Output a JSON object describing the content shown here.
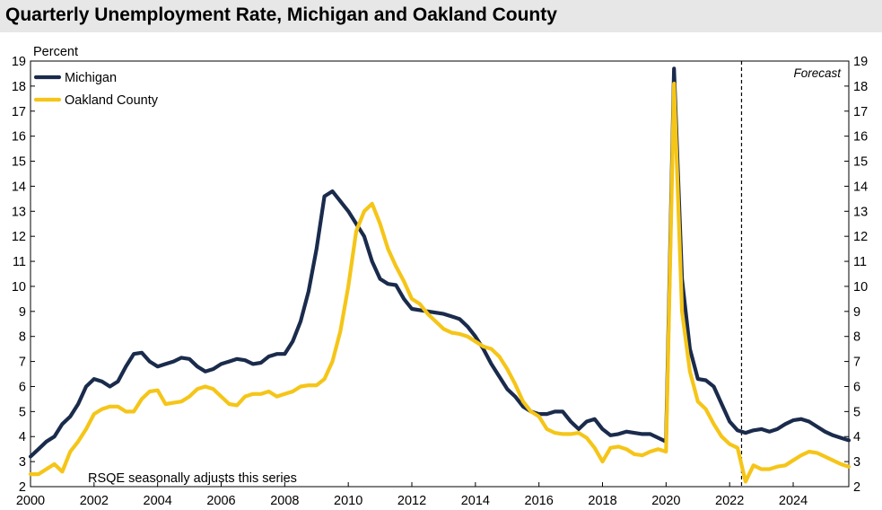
{
  "title": "Quarterly Unemployment Rate, Michigan and Oakland County",
  "chart_data": {
    "type": "line",
    "title": "Quarterly Unemployment Rate, Michigan and Oakland County",
    "ylabel": "Percent",
    "xlabel": "",
    "ylim": [
      2,
      19
    ],
    "yticks": [
      "2",
      "3",
      "4",
      "5",
      "6",
      "7",
      "8",
      "9",
      "10",
      "11",
      "12",
      "13",
      "14",
      "15",
      "16",
      "17",
      "18",
      "19"
    ],
    "xlim": [
      2000,
      2025.75
    ],
    "xticks": [
      "2000",
      "2002",
      "2004",
      "2006",
      "2008",
      "2010",
      "2012",
      "2014",
      "2016",
      "2018",
      "2020",
      "2022",
      "2024"
    ],
    "grid": false,
    "legend_position": "top-left",
    "forecast_start": 2022.375,
    "forecast_label": "Forecast",
    "note": "RSQE seasonally adjusts this series",
    "colors": {
      "Michigan": "#1a2b4c",
      "Oakland County": "#f5c518"
    },
    "series": [
      {
        "name": "Michigan",
        "points": [
          [
            2000,
            3.2
          ],
          [
            2000.25,
            3.5
          ],
          [
            2000.5,
            3.8
          ],
          [
            2000.75,
            4.0
          ],
          [
            2001,
            4.5
          ],
          [
            2001.25,
            4.8
          ],
          [
            2001.5,
            5.3
          ],
          [
            2001.75,
            6.0
          ],
          [
            2002,
            6.3
          ],
          [
            2002.25,
            6.2
          ],
          [
            2002.5,
            6.0
          ],
          [
            2002.75,
            6.2
          ],
          [
            2003,
            6.8
          ],
          [
            2003.25,
            7.3
          ],
          [
            2003.5,
            7.35
          ],
          [
            2003.75,
            7.0
          ],
          [
            2004,
            6.8
          ],
          [
            2004.25,
            6.9
          ],
          [
            2004.5,
            7.0
          ],
          [
            2004.75,
            7.15
          ],
          [
            2005,
            7.1
          ],
          [
            2005.25,
            6.8
          ],
          [
            2005.5,
            6.6
          ],
          [
            2005.75,
            6.7
          ],
          [
            2006,
            6.9
          ],
          [
            2006.25,
            7.0
          ],
          [
            2006.5,
            7.1
          ],
          [
            2006.75,
            7.05
          ],
          [
            2007,
            6.9
          ],
          [
            2007.25,
            6.95
          ],
          [
            2007.5,
            7.2
          ],
          [
            2007.75,
            7.3
          ],
          [
            2008,
            7.3
          ],
          [
            2008.25,
            7.8
          ],
          [
            2008.5,
            8.6
          ],
          [
            2008.75,
            9.8
          ],
          [
            2009,
            11.5
          ],
          [
            2009.25,
            13.6
          ],
          [
            2009.5,
            13.8
          ],
          [
            2009.75,
            13.4
          ],
          [
            2010,
            13.0
          ],
          [
            2010.25,
            12.5
          ],
          [
            2010.5,
            12.0
          ],
          [
            2010.75,
            11.0
          ],
          [
            2011,
            10.3
          ],
          [
            2011.25,
            10.1
          ],
          [
            2011.5,
            10.05
          ],
          [
            2011.75,
            9.5
          ],
          [
            2012,
            9.1
          ],
          [
            2012.25,
            9.05
          ],
          [
            2012.5,
            9.0
          ],
          [
            2012.75,
            8.95
          ],
          [
            2013,
            8.9
          ],
          [
            2013.25,
            8.8
          ],
          [
            2013.5,
            8.7
          ],
          [
            2013.75,
            8.4
          ],
          [
            2014,
            8.0
          ],
          [
            2014.25,
            7.5
          ],
          [
            2014.5,
            6.9
          ],
          [
            2014.75,
            6.4
          ],
          [
            2015,
            5.9
          ],
          [
            2015.25,
            5.6
          ],
          [
            2015.5,
            5.2
          ],
          [
            2015.75,
            5.0
          ],
          [
            2016,
            4.9
          ],
          [
            2016.25,
            4.9
          ],
          [
            2016.5,
            5.0
          ],
          [
            2016.75,
            5.0
          ],
          [
            2017,
            4.6
          ],
          [
            2017.25,
            4.3
          ],
          [
            2017.5,
            4.6
          ],
          [
            2017.75,
            4.7
          ],
          [
            2018,
            4.3
          ],
          [
            2018.25,
            4.05
          ],
          [
            2018.5,
            4.1
          ],
          [
            2018.75,
            4.2
          ],
          [
            2019,
            4.15
          ],
          [
            2019.25,
            4.1
          ],
          [
            2019.5,
            4.1
          ],
          [
            2019.75,
            3.95
          ],
          [
            2020,
            3.8
          ],
          [
            2020.25,
            18.7
          ],
          [
            2020.5,
            10.3
          ],
          [
            2020.75,
            7.5
          ],
          [
            2021,
            6.3
          ],
          [
            2021.25,
            6.25
          ],
          [
            2021.5,
            6.0
          ],
          [
            2021.75,
            5.3
          ],
          [
            2022,
            4.6
          ],
          [
            2022.25,
            4.25
          ],
          [
            2022.5,
            4.15
          ],
          [
            2022.75,
            4.25
          ],
          [
            2023,
            4.3
          ],
          [
            2023.25,
            4.2
          ],
          [
            2023.5,
            4.3
          ],
          [
            2023.75,
            4.5
          ],
          [
            2024,
            4.65
          ],
          [
            2024.25,
            4.7
          ],
          [
            2024.5,
            4.6
          ],
          [
            2024.75,
            4.4
          ],
          [
            2025,
            4.2
          ],
          [
            2025.25,
            4.05
          ],
          [
            2025.5,
            3.95
          ],
          [
            2025.75,
            3.85
          ]
        ]
      },
      {
        "name": "Oakland County",
        "points": [
          [
            2000,
            2.5
          ],
          [
            2000.25,
            2.5
          ],
          [
            2000.5,
            2.7
          ],
          [
            2000.75,
            2.9
          ],
          [
            2001,
            2.6
          ],
          [
            2001.25,
            3.4
          ],
          [
            2001.5,
            3.8
          ],
          [
            2001.75,
            4.3
          ],
          [
            2002,
            4.9
          ],
          [
            2002.25,
            5.1
          ],
          [
            2002.5,
            5.2
          ],
          [
            2002.75,
            5.2
          ],
          [
            2003,
            5.0
          ],
          [
            2003.25,
            5.0
          ],
          [
            2003.5,
            5.5
          ],
          [
            2003.75,
            5.8
          ],
          [
            2004,
            5.85
          ],
          [
            2004.25,
            5.3
          ],
          [
            2004.5,
            5.35
          ],
          [
            2004.75,
            5.4
          ],
          [
            2005,
            5.6
          ],
          [
            2005.25,
            5.9
          ],
          [
            2005.5,
            6.0
          ],
          [
            2005.75,
            5.9
          ],
          [
            2006,
            5.6
          ],
          [
            2006.25,
            5.3
          ],
          [
            2006.5,
            5.25
          ],
          [
            2006.75,
            5.6
          ],
          [
            2007,
            5.7
          ],
          [
            2007.25,
            5.7
          ],
          [
            2007.5,
            5.8
          ],
          [
            2007.75,
            5.6
          ],
          [
            2008,
            5.7
          ],
          [
            2008.25,
            5.8
          ],
          [
            2008.5,
            6.0
          ],
          [
            2008.75,
            6.05
          ],
          [
            2009,
            6.05
          ],
          [
            2009.25,
            6.3
          ],
          [
            2009.5,
            7.0
          ],
          [
            2009.75,
            8.2
          ],
          [
            2010,
            10.0
          ],
          [
            2010.25,
            12.2
          ],
          [
            2010.5,
            13.0
          ],
          [
            2010.75,
            13.3
          ],
          [
            2011,
            12.5
          ],
          [
            2011.25,
            11.5
          ],
          [
            2011.5,
            10.8
          ],
          [
            2011.75,
            10.2
          ],
          [
            2012,
            9.5
          ],
          [
            2012.25,
            9.3
          ],
          [
            2012.5,
            8.9
          ],
          [
            2012.75,
            8.6
          ],
          [
            2013,
            8.3
          ],
          [
            2013.25,
            8.15
          ],
          [
            2013.5,
            8.1
          ],
          [
            2013.75,
            8.0
          ],
          [
            2014,
            7.8
          ],
          [
            2014.25,
            7.6
          ],
          [
            2014.5,
            7.5
          ],
          [
            2014.75,
            7.2
          ],
          [
            2015,
            6.7
          ],
          [
            2015.25,
            6.1
          ],
          [
            2015.5,
            5.4
          ],
          [
            2015.75,
            5.0
          ],
          [
            2016,
            4.8
          ],
          [
            2016.25,
            4.3
          ],
          [
            2016.5,
            4.15
          ],
          [
            2016.75,
            4.1
          ],
          [
            2017,
            4.1
          ],
          [
            2017.25,
            4.15
          ],
          [
            2017.5,
            3.95
          ],
          [
            2017.75,
            3.55
          ],
          [
            2018,
            3.0
          ],
          [
            2018.25,
            3.55
          ],
          [
            2018.5,
            3.6
          ],
          [
            2018.75,
            3.5
          ],
          [
            2019,
            3.3
          ],
          [
            2019.25,
            3.25
          ],
          [
            2019.5,
            3.4
          ],
          [
            2019.75,
            3.5
          ],
          [
            2020,
            3.4
          ],
          [
            2020.25,
            18.1
          ],
          [
            2020.5,
            9.0
          ],
          [
            2020.75,
            6.6
          ],
          [
            2021,
            5.4
          ],
          [
            2021.25,
            5.1
          ],
          [
            2021.5,
            4.5
          ],
          [
            2021.75,
            4.0
          ],
          [
            2022,
            3.7
          ],
          [
            2022.25,
            3.55
          ],
          [
            2022.5,
            2.2
          ],
          [
            2022.75,
            2.85
          ],
          [
            2023,
            2.7
          ],
          [
            2023.25,
            2.7
          ],
          [
            2023.5,
            2.8
          ],
          [
            2023.75,
            2.85
          ],
          [
            2024,
            3.05
          ],
          [
            2024.25,
            3.25
          ],
          [
            2024.5,
            3.4
          ],
          [
            2024.75,
            3.35
          ],
          [
            2025,
            3.2
          ],
          [
            2025.25,
            3.05
          ],
          [
            2025.5,
            2.9
          ],
          [
            2025.75,
            2.8
          ]
        ]
      }
    ]
  }
}
